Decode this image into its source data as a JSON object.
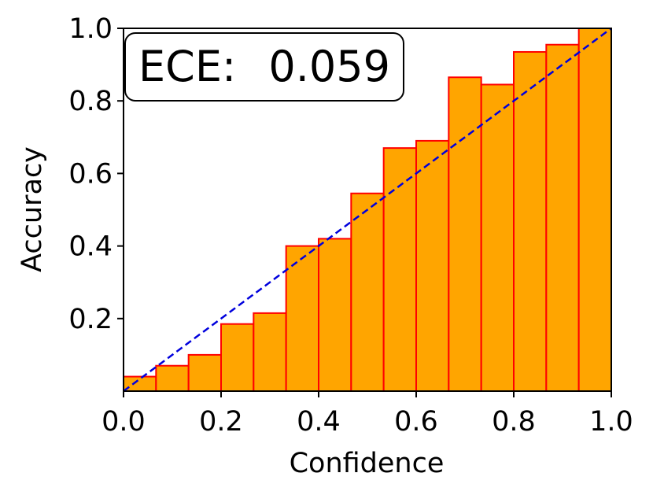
{
  "chart_data": {
    "type": "bar",
    "xlabel": "Confidence",
    "ylabel": "Accuracy",
    "xlim": [
      0,
      1
    ],
    "ylim": [
      0,
      1
    ],
    "x_ticks": [
      "0.0",
      "0.2",
      "0.4",
      "0.6",
      "0.8",
      "1.0"
    ],
    "y_ticks": [
      "0.2",
      "0.4",
      "0.6",
      "0.8",
      "1.0"
    ],
    "bins": 15,
    "values": [
      0.04,
      0.07,
      0.1,
      0.185,
      0.215,
      0.4,
      0.42,
      0.545,
      0.67,
      0.69,
      0.865,
      0.845,
      0.935,
      0.955,
      1.0
    ],
    "reference_line": [
      [
        0,
        0
      ],
      [
        1,
        1
      ]
    ],
    "annotation": {
      "label": "ECE:",
      "value": "0.059",
      "position": "top-left"
    },
    "grid": false,
    "colors": {
      "bar_fill": "#FFA500",
      "bar_edge": "#FF0000",
      "reference_line": "#0000DD",
      "axis": "#000000"
    }
  }
}
